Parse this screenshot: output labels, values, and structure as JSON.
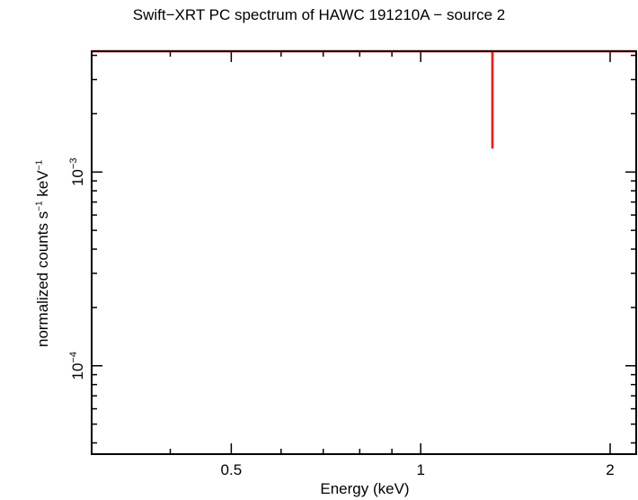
{
  "chart_data": {
    "type": "line",
    "title": "Swift−XRT PC spectrum of HAWC 191210A − source 2",
    "xlabel": "Energy (keV)",
    "ylabel": {
      "base": "normalized counts s",
      "exp1": "−1",
      "mid": " keV",
      "exp2": "−1"
    },
    "x_scale": "log",
    "y_scale": "log",
    "xlim": [
      0.3,
      2.2
    ],
    "ylim": [
      3.5e-05,
      0.0042
    ],
    "x_ticks": [
      {
        "value": 0.5,
        "label": "0.5"
      },
      {
        "value": 1,
        "label": "1"
      },
      {
        "value": 2,
        "label": "2"
      }
    ],
    "y_ticks": [
      {
        "value": 0.0001,
        "base": "10",
        "exp": "−4"
      },
      {
        "value": 0.001,
        "base": "10",
        "exp": "−3"
      }
    ],
    "series": [
      {
        "color": "#ff0000",
        "model": {
          "x": [
            0.3,
            2.2
          ],
          "y": [
            0.0042,
            0.0042
          ]
        },
        "points": [
          {
            "x": 1.3,
            "y": 0.0042,
            "y_low": 0.00132,
            "y_high": 0.0042
          }
        ]
      }
    ]
  }
}
